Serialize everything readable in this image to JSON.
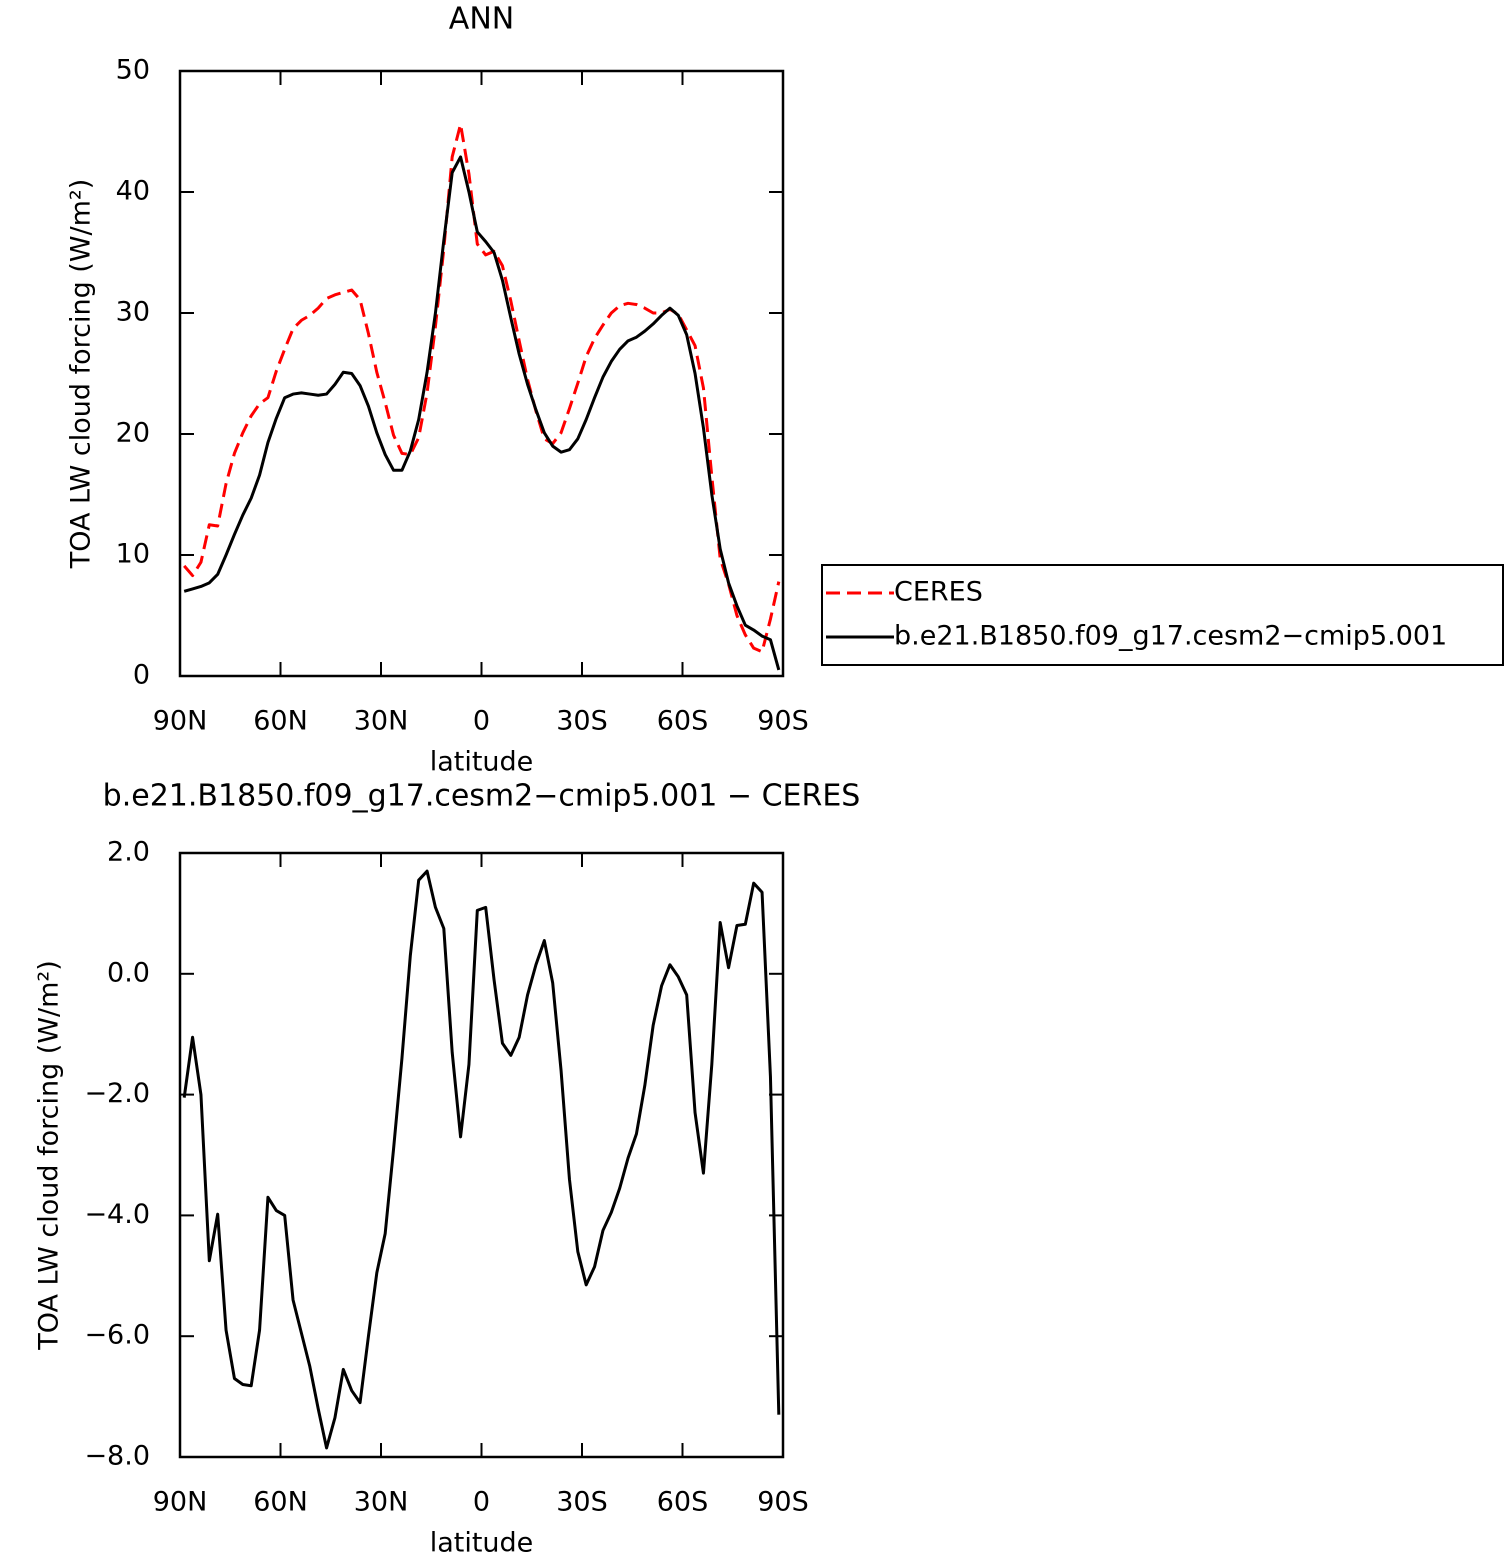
{
  "chart_data": [
    {
      "type": "line",
      "title": "ANN",
      "xlabel": "latitude",
      "ylabel": "TOA LW cloud forcing (W/m²)",
      "x": [
        88.75,
        86.25,
        83.75,
        81.25,
        78.75,
        76.25,
        73.75,
        71.25,
        68.75,
        66.25,
        63.75,
        61.25,
        58.75,
        56.25,
        53.75,
        51.25,
        48.75,
        46.25,
        43.75,
        41.25,
        38.75,
        36.25,
        33.75,
        31.25,
        28.75,
        26.25,
        23.75,
        21.25,
        18.75,
        16.25,
        13.75,
        11.25,
        8.75,
        6.25,
        3.75,
        1.25,
        -1.25,
        -3.75,
        -6.25,
        -8.75,
        -11.25,
        -13.75,
        -16.25,
        -18.75,
        -21.25,
        -23.75,
        -26.25,
        -28.75,
        -31.25,
        -33.75,
        -36.25,
        -38.75,
        -41.25,
        -43.75,
        -46.25,
        -48.75,
        -51.25,
        -53.75,
        -56.25,
        -58.75,
        -61.25,
        -63.75,
        -66.25,
        -68.75,
        -71.25,
        -73.75,
        -76.25,
        -78.75,
        -81.25,
        -83.75,
        -86.25,
        -88.75
      ],
      "xlim": [
        90,
        -90
      ],
      "xticks": [
        {
          "value": 90,
          "label": "90N"
        },
        {
          "value": 60,
          "label": "60N"
        },
        {
          "value": 30,
          "label": "30N"
        },
        0,
        {
          "value": -30,
          "label": "30S"
        },
        {
          "value": -60,
          "label": "60S"
        },
        {
          "value": -90,
          "label": "90S"
        }
      ],
      "ylim": [
        0,
        50
      ],
      "yticks": [
        0,
        10,
        20,
        30,
        40,
        50
      ],
      "legend": "outside right",
      "series": [
        {
          "name": "CERES",
          "color": "#ff0000",
          "linestyle": "dashed",
          "values": [
            9.1,
            8.3,
            9.4,
            12.5,
            12.4,
            15.9,
            18.4,
            20.1,
            21.5,
            22.5,
            23.0,
            25.2,
            27.0,
            28.7,
            29.4,
            29.8,
            30.4,
            31.2,
            31.5,
            31.7,
            31.9,
            31.1,
            28.3,
            25.1,
            22.6,
            19.9,
            18.4,
            18.3,
            19.7,
            23.4,
            28.9,
            35.3,
            42.9,
            45.6,
            41.5,
            35.7,
            34.8,
            35.1,
            33.9,
            31.0,
            27.7,
            24.5,
            21.9,
            19.6,
            19.2,
            20.1,
            22.1,
            24.2,
            26.4,
            27.9,
            29.0,
            30.0,
            30.6,
            30.8,
            30.7,
            30.4,
            30.0,
            30.0,
            30.3,
            29.9,
            28.6,
            27.3,
            23.8,
            16.5,
            9.7,
            7.6,
            5.0,
            3.4,
            2.3,
            2.0,
            4.7,
            7.8
          ]
        },
        {
          "name": "b.e21.B1850.f09_g17.cesm2−cmip5.001",
          "color": "#000000",
          "linestyle": "solid",
          "values": [
            7.0,
            7.2,
            7.4,
            7.7,
            8.4,
            10.0,
            11.7,
            13.3,
            14.7,
            16.6,
            19.3,
            21.3,
            23.0,
            23.3,
            23.4,
            23.3,
            23.2,
            23.3,
            24.1,
            25.1,
            25.0,
            24.0,
            22.3,
            20.1,
            18.3,
            17.0,
            17.0,
            18.6,
            21.2,
            25.1,
            30.0,
            36.0,
            41.6,
            42.9,
            40.0,
            36.7,
            35.9,
            35.0,
            32.7,
            29.6,
            26.6,
            24.1,
            22.0,
            20.1,
            19.0,
            18.5,
            18.7,
            19.6,
            21.2,
            23.0,
            24.7,
            26.0,
            27.0,
            27.7,
            28.0,
            28.5,
            29.1,
            29.8,
            30.4,
            29.8,
            28.2,
            25.0,
            20.5,
            15.0,
            10.5,
            7.7,
            5.8,
            4.2,
            3.8,
            3.3,
            3.0,
            0.5
          ]
        }
      ]
    },
    {
      "type": "line",
      "title": "b.e21.B1850.f09_g17.cesm2−cmip5.001 − CERES",
      "xlabel": "latitude",
      "ylabel": "TOA LW cloud forcing (W/m²)",
      "x": [
        88.75,
        86.25,
        83.75,
        81.25,
        78.75,
        76.25,
        73.75,
        71.25,
        68.75,
        66.25,
        63.75,
        61.25,
        58.75,
        56.25,
        53.75,
        51.25,
        48.75,
        46.25,
        43.75,
        41.25,
        38.75,
        36.25,
        33.75,
        31.25,
        28.75,
        26.25,
        23.75,
        21.25,
        18.75,
        16.25,
        13.75,
        11.25,
        8.75,
        6.25,
        3.75,
        1.25,
        -1.25,
        -3.75,
        -6.25,
        -8.75,
        -11.25,
        -13.75,
        -16.25,
        -18.75,
        -21.25,
        -23.75,
        -26.25,
        -28.75,
        -31.25,
        -33.75,
        -36.25,
        -38.75,
        -41.25,
        -43.75,
        -46.25,
        -48.75,
        -51.25,
        -53.75,
        -56.25,
        -58.75,
        -61.25,
        -63.75,
        -66.25,
        -68.75,
        -71.25,
        -73.75,
        -76.25,
        -78.75,
        -81.25,
        -83.75,
        -86.25,
        -88.75
      ],
      "xlim": [
        90,
        -90
      ],
      "xticks": [
        {
          "value": 90,
          "label": "90N"
        },
        {
          "value": 60,
          "label": "60N"
        },
        {
          "value": 30,
          "label": "30N"
        },
        0,
        {
          "value": -30,
          "label": "30S"
        },
        {
          "value": -60,
          "label": "60S"
        },
        {
          "value": -90,
          "label": "90S"
        }
      ],
      "ylim": [
        -8,
        2
      ],
      "yticks": [
        {
          "value": -8,
          "label": "−8.0"
        },
        {
          "value": -6,
          "label": "−6.0"
        },
        {
          "value": -4,
          "label": "−4.0"
        },
        {
          "value": -2,
          "label": "−2.0"
        },
        {
          "value": 0,
          "label": "0.0"
        },
        {
          "value": 2,
          "label": "2.0"
        }
      ],
      "color": "#000000",
      "values": [
        -2.05,
        -1.05,
        -2.0,
        -4.75,
        -3.98,
        -5.9,
        -6.7,
        -6.8,
        -6.82,
        -5.9,
        -3.7,
        -3.92,
        -4.0,
        -5.4,
        -5.95,
        -6.5,
        -7.2,
        -7.85,
        -7.35,
        -6.55,
        -6.9,
        -7.1,
        -6.0,
        -4.95,
        -4.3,
        -2.9,
        -1.4,
        0.3,
        1.55,
        1.7,
        1.1,
        0.75,
        -1.3,
        -2.7,
        -1.5,
        1.05,
        1.1,
        -0.1,
        -1.15,
        -1.35,
        -1.05,
        -0.35,
        0.15,
        0.55,
        -0.15,
        -1.6,
        -3.4,
        -4.6,
        -5.15,
        -4.85,
        -4.25,
        -3.95,
        -3.55,
        -3.05,
        -2.65,
        -1.85,
        -0.85,
        -0.2,
        0.15,
        -0.05,
        -0.35,
        -2.3,
        -3.3,
        -1.5,
        0.85,
        0.1,
        0.8,
        0.82,
        1.5,
        1.35,
        -1.7,
        -7.3
      ]
    }
  ]
}
